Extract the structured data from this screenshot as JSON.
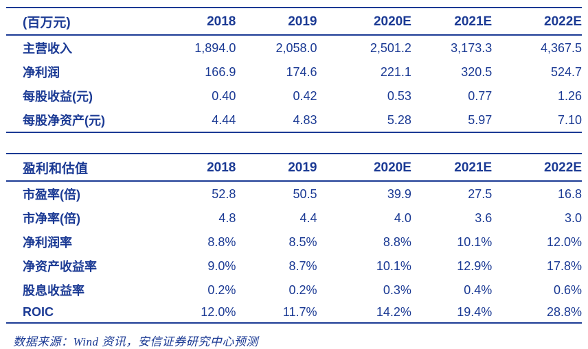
{
  "colors": {
    "accent": "#1B3A94",
    "background": "#FFFFFF"
  },
  "financials_table": {
    "unit_label": "(百万元)",
    "columns": [
      "2018",
      "2019",
      "2020E",
      "2021E",
      "2022E"
    ],
    "rows": [
      {
        "label": "主营收入",
        "values": [
          "1,894.0",
          "2,058.0",
          "2,501.2",
          "3,173.3",
          "4,367.5"
        ]
      },
      {
        "label": "净利润",
        "values": [
          "166.9",
          "174.6",
          "221.1",
          "320.5",
          "524.7"
        ]
      },
      {
        "label": "每股收益(元)",
        "values": [
          "0.40",
          "0.42",
          "0.53",
          "0.77",
          "1.26"
        ]
      },
      {
        "label": "每股净资产(元)",
        "values": [
          "4.44",
          "4.83",
          "5.28",
          "5.97",
          "7.10"
        ]
      }
    ]
  },
  "valuation_table": {
    "title": "盈利和估值",
    "columns": [
      "2018",
      "2019",
      "2020E",
      "2021E",
      "2022E"
    ],
    "rows": [
      {
        "label": "市盈率(倍)",
        "values": [
          "52.8",
          "50.5",
          "39.9",
          "27.5",
          "16.8"
        ]
      },
      {
        "label": "市净率(倍)",
        "values": [
          "4.8",
          "4.4",
          "4.0",
          "3.6",
          "3.0"
        ]
      },
      {
        "label": "净利润率",
        "values": [
          "8.8%",
          "8.5%",
          "8.8%",
          "10.1%",
          "12.0%"
        ]
      },
      {
        "label": "净资产收益率",
        "values": [
          "9.0%",
          "8.7%",
          "10.1%",
          "12.9%",
          "17.8%"
        ]
      },
      {
        "label": "股息收益率",
        "values": [
          "0.2%",
          "0.2%",
          "0.3%",
          "0.4%",
          "0.6%"
        ]
      },
      {
        "label": "ROIC",
        "values": [
          "12.0%",
          "11.7%",
          "14.2%",
          "19.4%",
          "28.8%"
        ]
      }
    ]
  },
  "footer": {
    "source_text": "数据来源：Wind 资讯，安信证券研究中心预测"
  }
}
